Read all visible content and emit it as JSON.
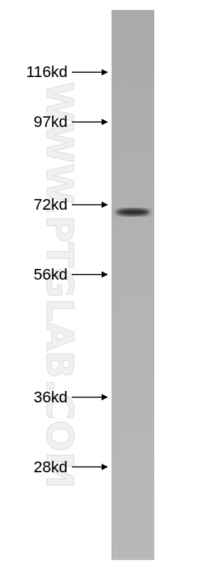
{
  "chart_data": {
    "type": "blot",
    "watermark": "WWW.PTGLAB.COM",
    "categories": [
      null
    ],
    "values": [
      70
    ],
    "log": "y",
    "ylim": [
      20,
      145
    ],
    "yticks": [
      {
        "value": 116,
        "label": "116kd"
      },
      {
        "value": 97,
        "label": "97kd"
      },
      {
        "value": 72,
        "label": "72kd"
      },
      {
        "value": 56,
        "label": "56kd"
      },
      {
        "value": 36,
        "label": "36kd"
      },
      {
        "value": 28,
        "label": "28kd"
      }
    ],
    "tick_labels": "y"
  }
}
